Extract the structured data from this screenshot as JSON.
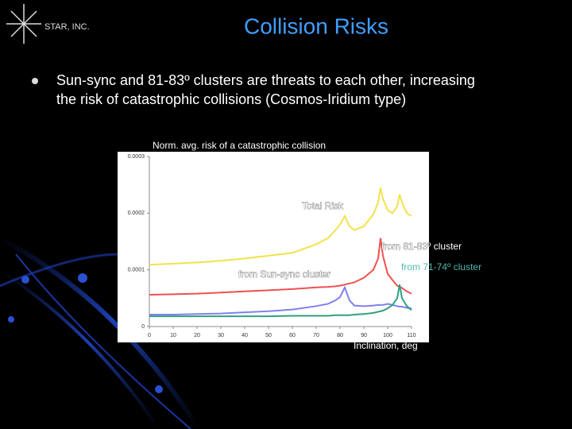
{
  "slide": {
    "logo": "STAR, INC.",
    "title": "Collision Risks",
    "bullet_lines": [
      "Sun-sync and 81-83º clusters are threats to each other, increasing",
      "the risk of catastrophic collisions (Cosmos-Iridium type)"
    ]
  },
  "chart_data": {
    "type": "line",
    "ylabel": "Norm. avg. risk of a catastrophic collision",
    "xlabel": "Inclination, deg",
    "x": [
      0,
      10,
      20,
      30,
      40,
      50,
      60,
      70,
      75,
      78,
      80,
      82,
      84,
      86,
      90,
      94,
      96,
      97,
      98,
      100,
      102,
      104,
      105,
      106,
      108,
      110
    ],
    "series": [
      {
        "name": "Total Risk",
        "color": "#f2e24a",
        "values": [
          0.000109,
          0.000111,
          0.000113,
          0.000116,
          0.00012,
          0.000125,
          0.00013,
          0.000145,
          0.000156,
          0.00017,
          0.00018,
          0.000195,
          0.000177,
          0.00017,
          0.000177,
          0.000198,
          0.000219,
          0.000245,
          0.000226,
          0.000205,
          0.0002,
          0.000212,
          0.000233,
          0.000219,
          0.0002,
          0.000195
        ]
      },
      {
        "name": "from 81-83º cluster",
        "color": "#f05050",
        "values": [
          5.6e-05,
          5.7e-05,
          5.8e-05,
          6e-05,
          6.2e-05,
          6.4e-05,
          6.6e-05,
          6.9e-05,
          7e-05,
          7.1e-05,
          7.2e-05,
          7.4e-05,
          7.6e-05,
          7.8e-05,
          8.6e-05,
          0.0001,
          0.00012,
          0.000156,
          0.000125,
          9.3e-05,
          8.2e-05,
          7.2e-05,
          7e-05,
          6.8e-05,
          6.2e-05,
          5.8e-05
        ]
      },
      {
        "name": "from Sun-sync cluster",
        "color": "#8080f0",
        "values": [
          2.1e-05,
          2.1e-05,
          2.2e-05,
          2.3e-05,
          2.5e-05,
          2.7e-05,
          3e-05,
          3.6e-05,
          4e-05,
          4.6e-05,
          5.2e-05,
          6.9e-05,
          4.6e-05,
          3.7e-05,
          3.6e-05,
          3.7e-05,
          3.8e-05,
          3.8e-05,
          3.8e-05,
          4e-05,
          3.8e-05,
          3.6e-05,
          3.5e-05,
          3.5e-05,
          3.3e-05,
          3.2e-05
        ]
      },
      {
        "name": "from 71-74º cluster",
        "color": "#30a080",
        "values": [
          1.8e-05,
          1.8e-05,
          1.8e-05,
          1.8e-05,
          1.8e-05,
          1.8e-05,
          1.9e-05,
          1.9e-05,
          1.9e-05,
          2e-05,
          2e-05,
          2e-05,
          2e-05,
          2.1e-05,
          2.2e-05,
          2.4e-05,
          2.6e-05,
          2.7e-05,
          2.8e-05,
          3.2e-05,
          3.8e-05,
          5e-05,
          7.4e-05,
          5e-05,
          3.6e-05,
          2.9e-05
        ]
      }
    ],
    "xlim": [
      0,
      110
    ],
    "xticks": [
      0,
      10,
      20,
      30,
      40,
      50,
      60,
      70,
      80,
      90,
      100,
      110
    ],
    "ylim": [
      0,
      0.0003
    ],
    "yticks": [
      0,
      0.0001,
      0.0002,
      0.0003
    ]
  }
}
